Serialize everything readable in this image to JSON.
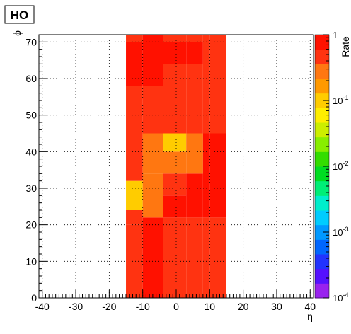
{
  "chart_data": {
    "type": "heatmap",
    "title": "HO",
    "xlabel": "η",
    "ylabel": "ϕ",
    "z_label": "Rate",
    "xlim": [
      -41,
      41
    ],
    "ylim": [
      0,
      72
    ],
    "x_ticks": [
      -40,
      -30,
      -20,
      -10,
      0,
      10,
      20,
      30,
      40
    ],
    "y_ticks": [
      0,
      10,
      20,
      30,
      40,
      50,
      60,
      70
    ],
    "colorbar": {
      "scale": "log",
      "range": [
        0.0001,
        1
      ],
      "tick_values": [
        0.0001,
        0.001,
        0.01,
        0.1,
        1
      ],
      "tick_labels": [
        {
          "base": "10",
          "exp": "-4"
        },
        {
          "base": "10",
          "exp": "-3"
        },
        {
          "base": "10",
          "exp": "-2"
        },
        {
          "base": "10",
          "exp": "-1"
        },
        {
          "base": "1",
          "exp": ""
        }
      ]
    },
    "grid": true,
    "columns": [
      {
        "eta": [
          -15,
          -10
        ],
        "cells": [
          {
            "phi": [
              0,
              20
            ],
            "rate": 0.5
          },
          {
            "phi": [
              20,
              24
            ],
            "rate": 0.5
          },
          {
            "phi": [
              24,
              32
            ],
            "rate": 0.12
          },
          {
            "phi": [
              32,
              58
            ],
            "rate": 0.5
          },
          {
            "phi": [
              58,
              70
            ],
            "rate": 0.8
          },
          {
            "phi": [
              70,
              72
            ],
            "rate": 0.5
          }
        ]
      },
      {
        "eta": [
          -10,
          -4
        ],
        "cells": [
          {
            "phi": [
              0,
              22
            ],
            "rate": 0.8
          },
          {
            "phi": [
              22,
              34
            ],
            "rate": 0.3
          },
          {
            "phi": [
              34,
              45
            ],
            "rate": 0.3
          },
          {
            "phi": [
              45,
              58
            ],
            "rate": 0.5
          },
          {
            "phi": [
              58,
              72
            ],
            "rate": 0.8
          }
        ]
      },
      {
        "eta": [
          -4,
          3
        ],
        "cells": [
          {
            "phi": [
              0,
              22
            ],
            "rate": 0.5
          },
          {
            "phi": [
              22,
              28
            ],
            "rate": 0.8
          },
          {
            "phi": [
              28,
              34
            ],
            "rate": 0.5
          },
          {
            "phi": [
              34,
              40
            ],
            "rate": 0.3
          },
          {
            "phi": [
              40,
              45
            ],
            "rate": 0.12
          },
          {
            "phi": [
              45,
              64
            ],
            "rate": 0.5
          },
          {
            "phi": [
              64,
              70
            ],
            "rate": 0.8
          },
          {
            "phi": [
              70,
              72
            ],
            "rate": 0.5
          }
        ]
      },
      {
        "eta": [
          3,
          8
        ],
        "cells": [
          {
            "phi": [
              0,
              22
            ],
            "rate": 0.5
          },
          {
            "phi": [
              22,
              34
            ],
            "rate": 0.8
          },
          {
            "phi": [
              34,
              45
            ],
            "rate": 0.3
          },
          {
            "phi": [
              45,
              64
            ],
            "rate": 0.5
          },
          {
            "phi": [
              64,
              70
            ],
            "rate": 0.8
          },
          {
            "phi": [
              70,
              72
            ],
            "rate": 0.5
          }
        ]
      },
      {
        "eta": [
          8,
          10
        ],
        "cells": [
          {
            "phi": [
              0,
              22
            ],
            "rate": 0.5
          },
          {
            "phi": [
              22,
              45
            ],
            "rate": 0.8
          },
          {
            "phi": [
              45,
              72
            ],
            "rate": 0.5
          }
        ]
      },
      {
        "eta": [
          10,
          15
        ],
        "cells": [
          {
            "phi": [
              0,
              22
            ],
            "rate": 0.5
          },
          {
            "phi": [
              22,
              45
            ],
            "rate": 0.8
          },
          {
            "phi": [
              45,
              72
            ],
            "rate": 0.5
          }
        ]
      }
    ]
  }
}
